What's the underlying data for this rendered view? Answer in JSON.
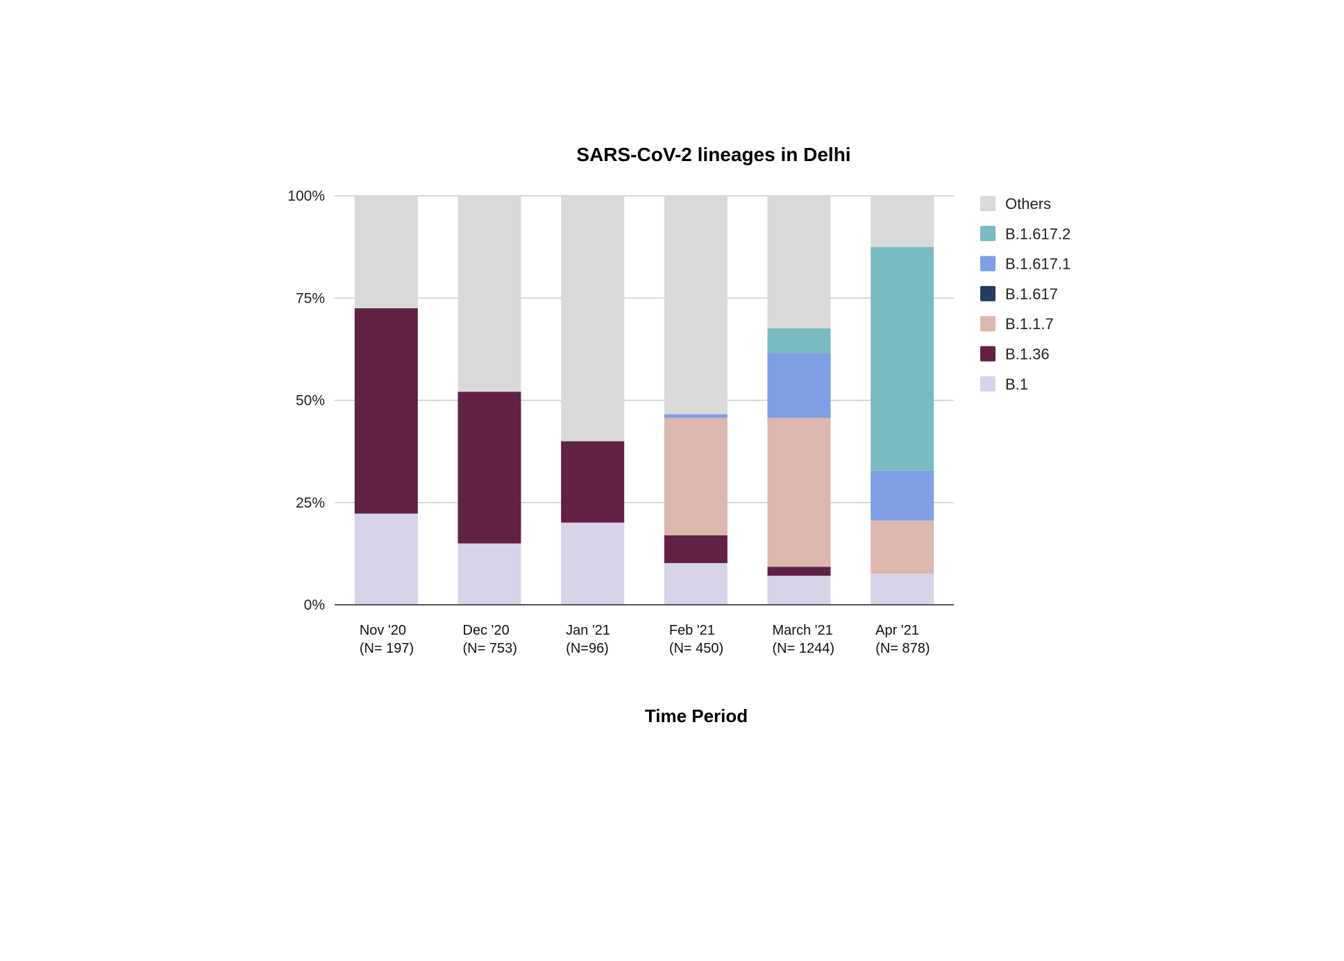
{
  "chart_data": {
    "type": "bar",
    "stacked": true,
    "title": "SARS-CoV-2 lineages in Delhi",
    "xlabel": "Time Period",
    "ylabel": "",
    "ylim": [
      0,
      100
    ],
    "yticks": [
      "0%",
      "25%",
      "50%",
      "75%",
      "100%"
    ],
    "grid": true,
    "legend_position": "right",
    "categories": [
      [
        "Nov '20",
        "(N= 197)"
      ],
      [
        "Dec '20",
        "(N= 753)"
      ],
      [
        "Jan '21",
        "(N=96)"
      ],
      [
        "Feb '21",
        "(N= 450)"
      ],
      [
        "March '21",
        "(N= 1244)"
      ],
      [
        "Apr '21",
        "(N= 878)"
      ]
    ],
    "series": [
      {
        "name": "B.1",
        "color": "#d8d3e8",
        "values": [
          22.3,
          15.0,
          20.1,
          10.2,
          7.1,
          7.6
        ]
      },
      {
        "name": "B.1.36",
        "color": "#612145",
        "values": [
          50.2,
          37.1,
          19.9,
          6.8,
          2.2,
          0
        ]
      },
      {
        "name": "B.1.1.7",
        "color": "#dbb7ad",
        "values": [
          0,
          0,
          0,
          28.7,
          36.4,
          13.0
        ]
      },
      {
        "name": "B.1.617",
        "color": "#253b63",
        "values": [
          0,
          0,
          0,
          0,
          0,
          0
        ]
      },
      {
        "name": "B.1.617.1",
        "color": "#7f9fe4",
        "values": [
          0,
          0,
          0,
          0.9,
          15.9,
          12.2
        ]
      },
      {
        "name": "B.1.617.2",
        "color": "#7abac2",
        "values": [
          0,
          0,
          0,
          0,
          6.0,
          54.7
        ]
      },
      {
        "name": "Others",
        "color": "#d9d9d9",
        "values": [
          27.5,
          47.9,
          60.0,
          53.4,
          32.4,
          12.5
        ]
      }
    ],
    "legend_order": [
      "Others",
      "B.1.617.2",
      "B.1.617.1",
      "B.1.617",
      "B.1.1.7",
      "B.1.36",
      "B.1"
    ]
  }
}
